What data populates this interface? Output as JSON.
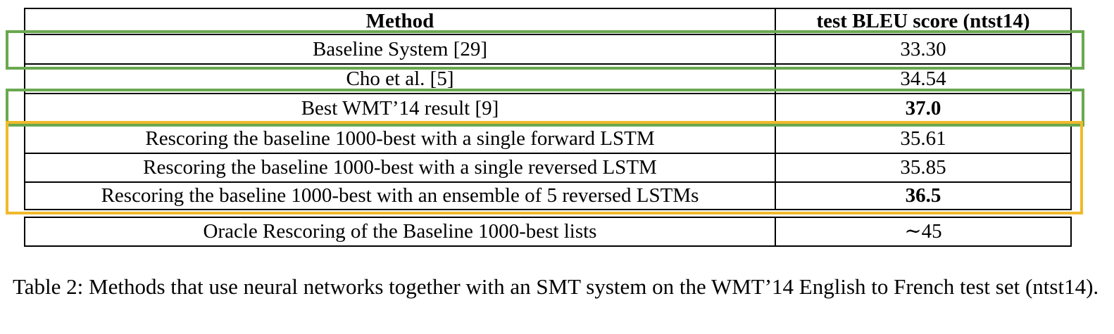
{
  "table": {
    "columns": [
      "Method",
      "test BLEU score (ntst14)"
    ],
    "rows": [
      {
        "method": "Baseline System [29]",
        "score": "33.30",
        "bold": false
      },
      {
        "method": "Cho et al. [5]",
        "score": "34.54",
        "bold": false
      },
      {
        "method": "Best WMT’14 result [9]",
        "score": "37.0",
        "bold": true
      },
      {
        "method": "Rescoring the baseline 1000-best with a single forward LSTM",
        "score": "35.61",
        "bold": false
      },
      {
        "method": "Rescoring the baseline 1000-best with a single reversed LSTM",
        "score": "35.85",
        "bold": false
      },
      {
        "method": "Rescoring the baseline 1000-best with an ensemble of 5 reversed LSTMs",
        "score": "36.5",
        "bold": true
      },
      {
        "method": "Oracle Rescoring of the Baseline 1000-best lists",
        "score": "∼45",
        "bold": false
      }
    ]
  },
  "highlights": {
    "green_color": "#6aa84f",
    "orange_color": "#f1b92a"
  },
  "caption": "Table 2: Methods that use neural networks together with an SMT system on the WMT’14 English to French test set (ntst14)."
}
